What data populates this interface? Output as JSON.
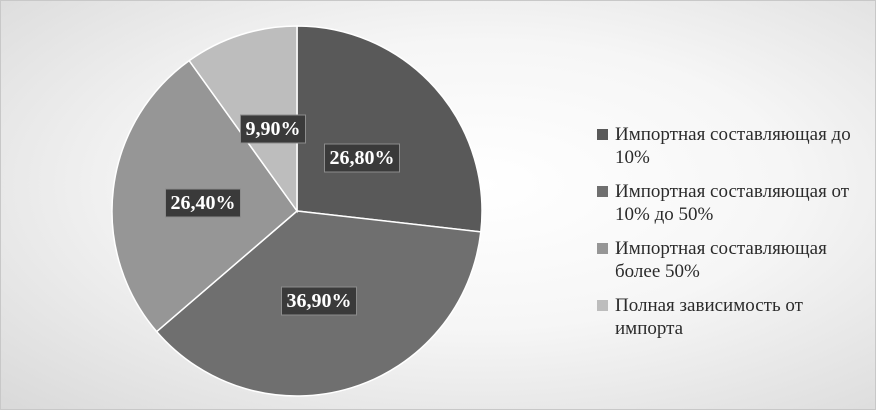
{
  "chart_data": {
    "type": "pie",
    "title": "",
    "slices": [
      {
        "label": "Импортная составляющая до 10%",
        "value": 26.8,
        "display": "26,80%",
        "color": "#595959"
      },
      {
        "label": "Импортная составляющая от 10% до 50%",
        "value": 36.9,
        "display": "36,90%",
        "color": "#6f6f6f"
      },
      {
        "label": "Импортная составляющая более 50%",
        "value": 26.4,
        "display": "26,40%",
        "color": "#969696"
      },
      {
        "label": "Полная зависимость от импорта",
        "value": 9.9,
        "display": "9,90%",
        "color": "#bdbdbd"
      }
    ],
    "legend_position": "right"
  }
}
